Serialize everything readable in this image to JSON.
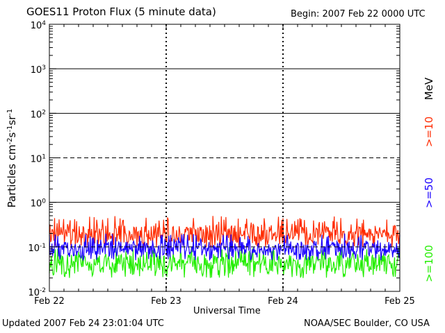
{
  "header": {
    "title": "GOES11 Proton Flux (5 minute data)",
    "begin": "Begin: 2007 Feb 22 0000 UTC"
  },
  "footer": {
    "updated": "Updated 2007 Feb 24 23:01:04 UTC",
    "credit": "NOAA/SEC Boulder, CO USA"
  },
  "colors": {
    "ge10": "#ff2a00",
    "ge50": "#1a00ff",
    "ge100": "#22ee00",
    "axes": "#000000"
  },
  "chart_data": {
    "type": "line",
    "title": "GOES11 Proton Flux (5 minute data)",
    "xlabel": "Universal Time",
    "ylabel_parts": {
      "prefix": "Particles cm",
      "sup1": "-2",
      "mid1": "s",
      "sup2": "-1",
      "mid2": "sr",
      "sup3": "-1"
    },
    "y_scale": "log",
    "ylim": [
      0.01,
      10000
    ],
    "y_ticks": [
      {
        "base": "10",
        "exp": "-2"
      },
      {
        "base": "10",
        "exp": "-1"
      },
      {
        "base": "10",
        "exp": "0"
      },
      {
        "base": "10",
        "exp": "1"
      },
      {
        "base": "10",
        "exp": "2"
      },
      {
        "base": "10",
        "exp": "3"
      },
      {
        "base": "10",
        "exp": "4"
      }
    ],
    "x_ticks": [
      "Feb 22",
      "Feb 23",
      "Feb 24",
      "Feb 25"
    ],
    "xlim": [
      "2007-02-22 00:00",
      "2007-02-25 00:00"
    ],
    "dashed_threshold_lines": [
      10,
      0.1
    ],
    "units_label": "MeV",
    "series": [
      {
        "name": ">=10",
        "color_key": "ge10",
        "approx_min": 0.1,
        "approx_max": 0.5,
        "typical": 0.2
      },
      {
        "name": ">=50",
        "color_key": "ge50",
        "approx_min": 0.05,
        "approx_max": 0.2,
        "typical": 0.09
      },
      {
        "name": ">=100",
        "color_key": "ge100",
        "approx_min": 0.02,
        "approx_max": 0.1,
        "typical": 0.045
      }
    ]
  }
}
